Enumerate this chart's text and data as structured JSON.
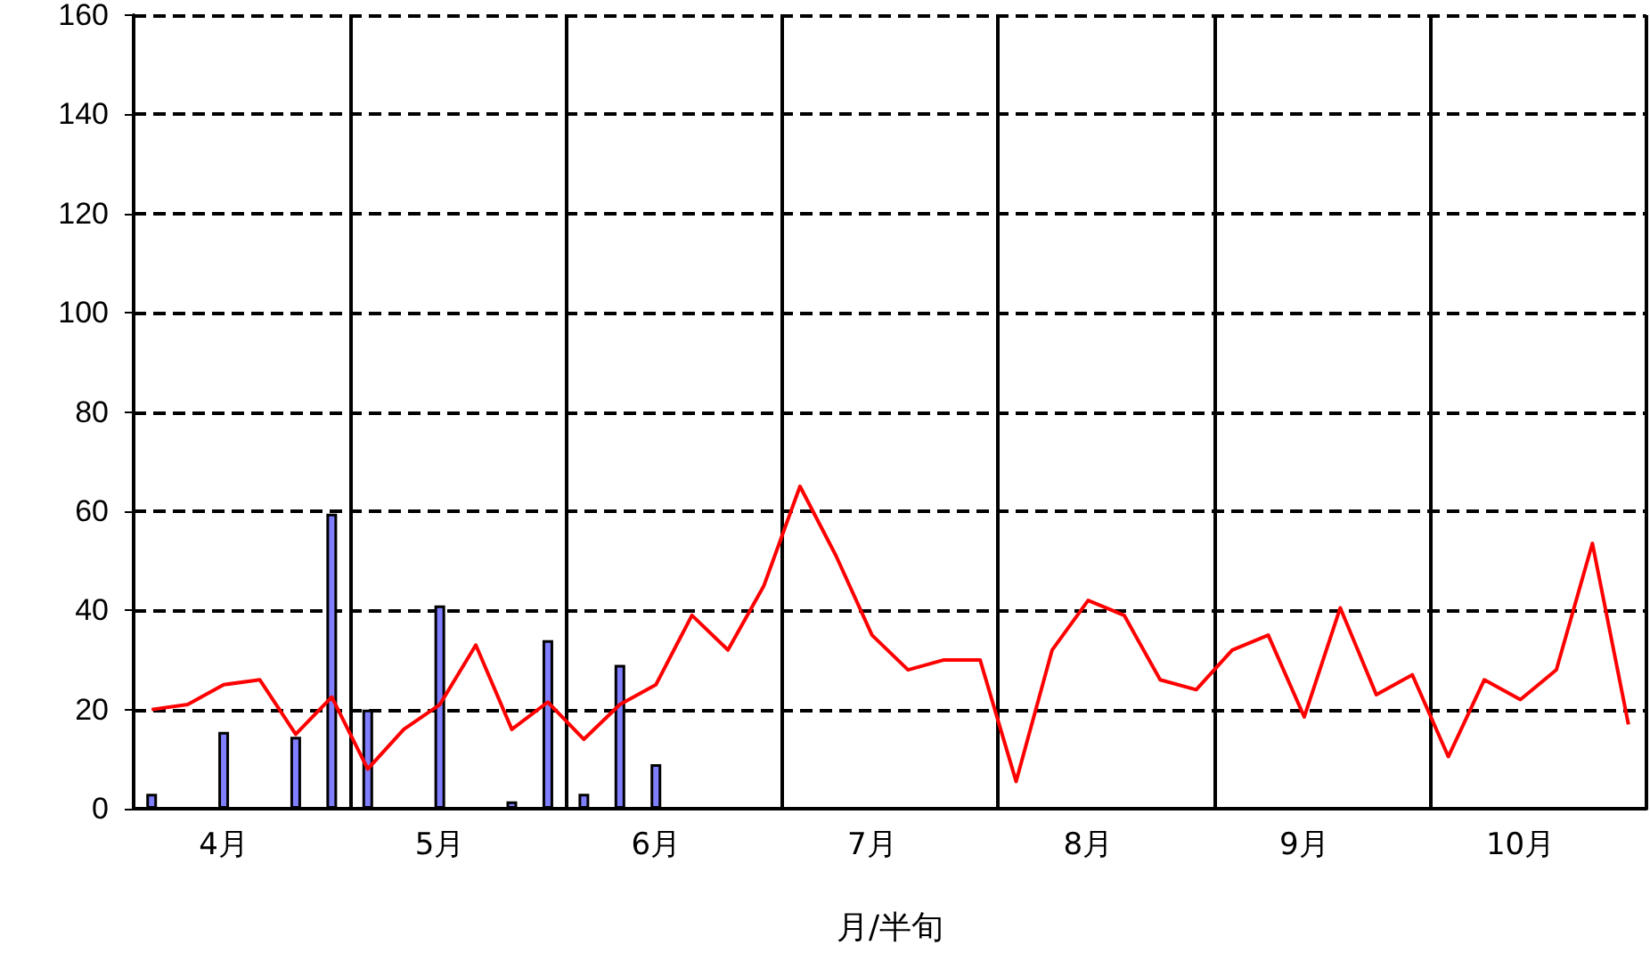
{
  "chart_data": {
    "type": "bar",
    "xlabel": "月/半旬",
    "categories": [
      null,
      null,
      "4月",
      null,
      null,
      null,
      null,
      null,
      "5月",
      null,
      null,
      null,
      null,
      null,
      "6月",
      null,
      null,
      null,
      null,
      null,
      "7月",
      null,
      null,
      null,
      null,
      null,
      "8月",
      null,
      null,
      null,
      null,
      null,
      "9月",
      null,
      null,
      null,
      null,
      null,
      "10月",
      null,
      null,
      null
    ],
    "series": [
      {
        "color": "#7f7fff",
        "values": [
          3,
          0,
          15.5,
          0,
          14.5,
          59.5,
          20,
          0,
          41,
          0,
          1.5,
          34,
          3,
          29,
          9,
          0,
          0,
          0,
          0,
          0,
          0,
          0,
          0,
          0,
          0,
          0,
          0,
          0,
          0,
          0,
          0,
          0,
          0,
          0,
          0,
          0,
          0,
          0,
          0,
          0,
          0,
          0
        ]
      },
      {
        "type": "line",
        "color": "#ff0000",
        "values": [
          20,
          21,
          25,
          26,
          15,
          22.5,
          8,
          16,
          21,
          33,
          16,
          21.5,
          14,
          21,
          25,
          39,
          32,
          45,
          65,
          51,
          35,
          28,
          30,
          30,
          5.5,
          32,
          42,
          39,
          26,
          24,
          32,
          35,
          18.5,
          40.5,
          23,
          27,
          10.5,
          26,
          22,
          28,
          53.5,
          17
        ]
      }
    ],
    "ylim": [
      0,
      160
    ],
    "yticks": [
      0,
      20,
      40,
      60,
      80,
      100,
      120,
      140,
      160
    ],
    "grid": true,
    "marker": "none",
    "line_style": "solid"
  }
}
